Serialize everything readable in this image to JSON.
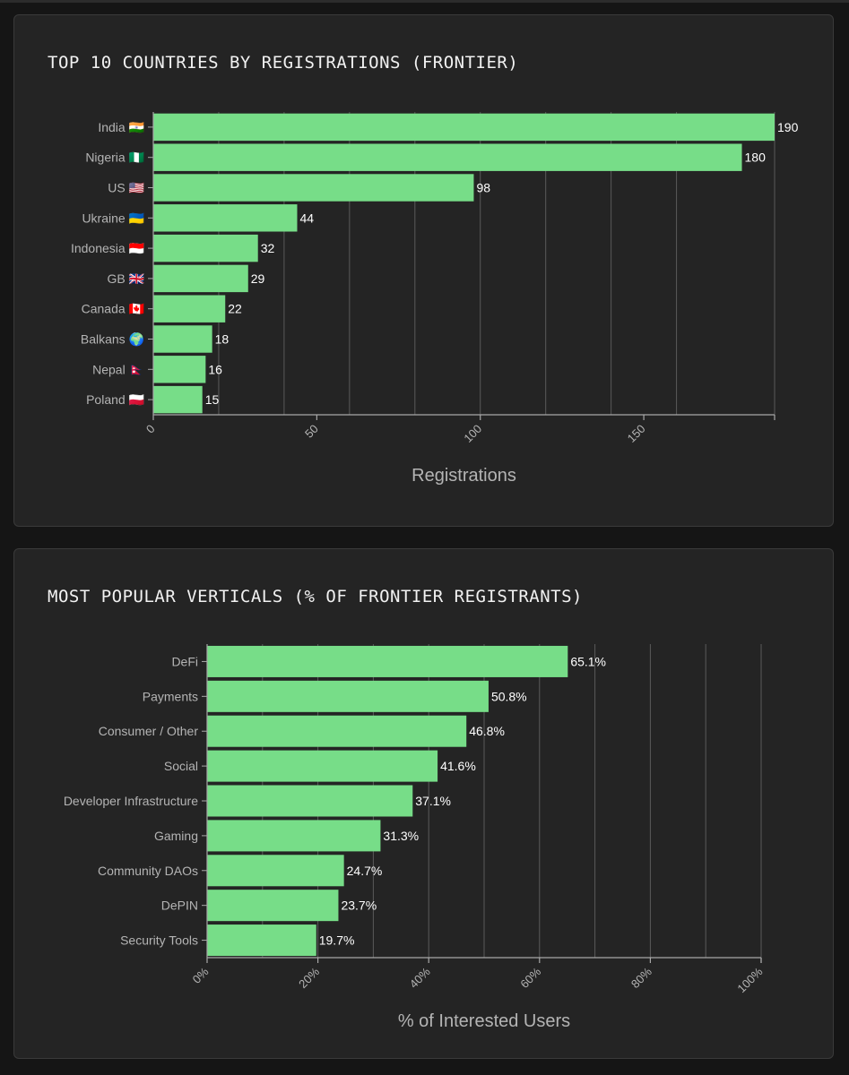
{
  "colors": {
    "bar": "#77dd88",
    "axis": "#a8a8a8",
    "grid": "#5a5a5a",
    "label": "#b4b4b4",
    "value": "#ffffff",
    "title": "#f2f2f2"
  },
  "chart_data": [
    {
      "type": "bar",
      "orientation": "horizontal",
      "title": "TOP 10 COUNTRIES BY REGISTRATIONS (FRONTIER)",
      "xlabel": "Registrations",
      "ylabel": "",
      "categories": [
        "India 🇮🇳",
        "Nigeria 🇳🇬",
        "US 🇺🇸",
        "Ukraine 🇺🇦",
        "Indonesia 🇮🇩",
        "GB 🇬🇧",
        "Canada 🇨🇦",
        "Balkans 🌍",
        "Nepal 🇳🇵",
        "Poland 🇵🇱"
      ],
      "values": [
        190,
        180,
        98,
        44,
        32,
        29,
        22,
        18,
        16,
        15
      ],
      "value_labels": [
        "190",
        "180",
        "98",
        "44",
        "32",
        "29",
        "22",
        "18",
        "16",
        "15"
      ],
      "xlim": [
        0,
        190
      ],
      "ticks": [
        0,
        50,
        100,
        150
      ],
      "tick_labels": [
        "0",
        "50",
        "100",
        "150"
      ],
      "gridlines": [
        0,
        20,
        40,
        60,
        80,
        100,
        120,
        140,
        160,
        190
      ],
      "grid": true
    },
    {
      "type": "bar",
      "orientation": "horizontal",
      "title": "MOST POPULAR VERTICALS (% OF FRONTIER REGISTRANTS)",
      "xlabel": "% of Interested Users",
      "ylabel": "",
      "categories": [
        "DeFi",
        "Payments",
        "Consumer / Other",
        "Social",
        "Developer Infrastructure",
        "Gaming",
        "Community DAOs",
        "DePIN",
        "Security Tools"
      ],
      "values": [
        65.1,
        50.8,
        46.8,
        41.6,
        37.1,
        31.3,
        24.7,
        23.7,
        19.7
      ],
      "value_labels": [
        "65.1%",
        "50.8%",
        "46.8%",
        "41.6%",
        "37.1%",
        "31.3%",
        "24.7%",
        "23.7%",
        "19.7%"
      ],
      "xlim": [
        0,
        100
      ],
      "ticks": [
        0,
        20,
        40,
        60,
        80,
        100
      ],
      "tick_labels": [
        "0%",
        "20%",
        "40%",
        "60%",
        "80%",
        "100%"
      ],
      "gridlines": [
        0,
        10,
        20,
        30,
        40,
        50,
        60,
        70,
        80,
        90,
        100
      ],
      "grid": true
    }
  ]
}
